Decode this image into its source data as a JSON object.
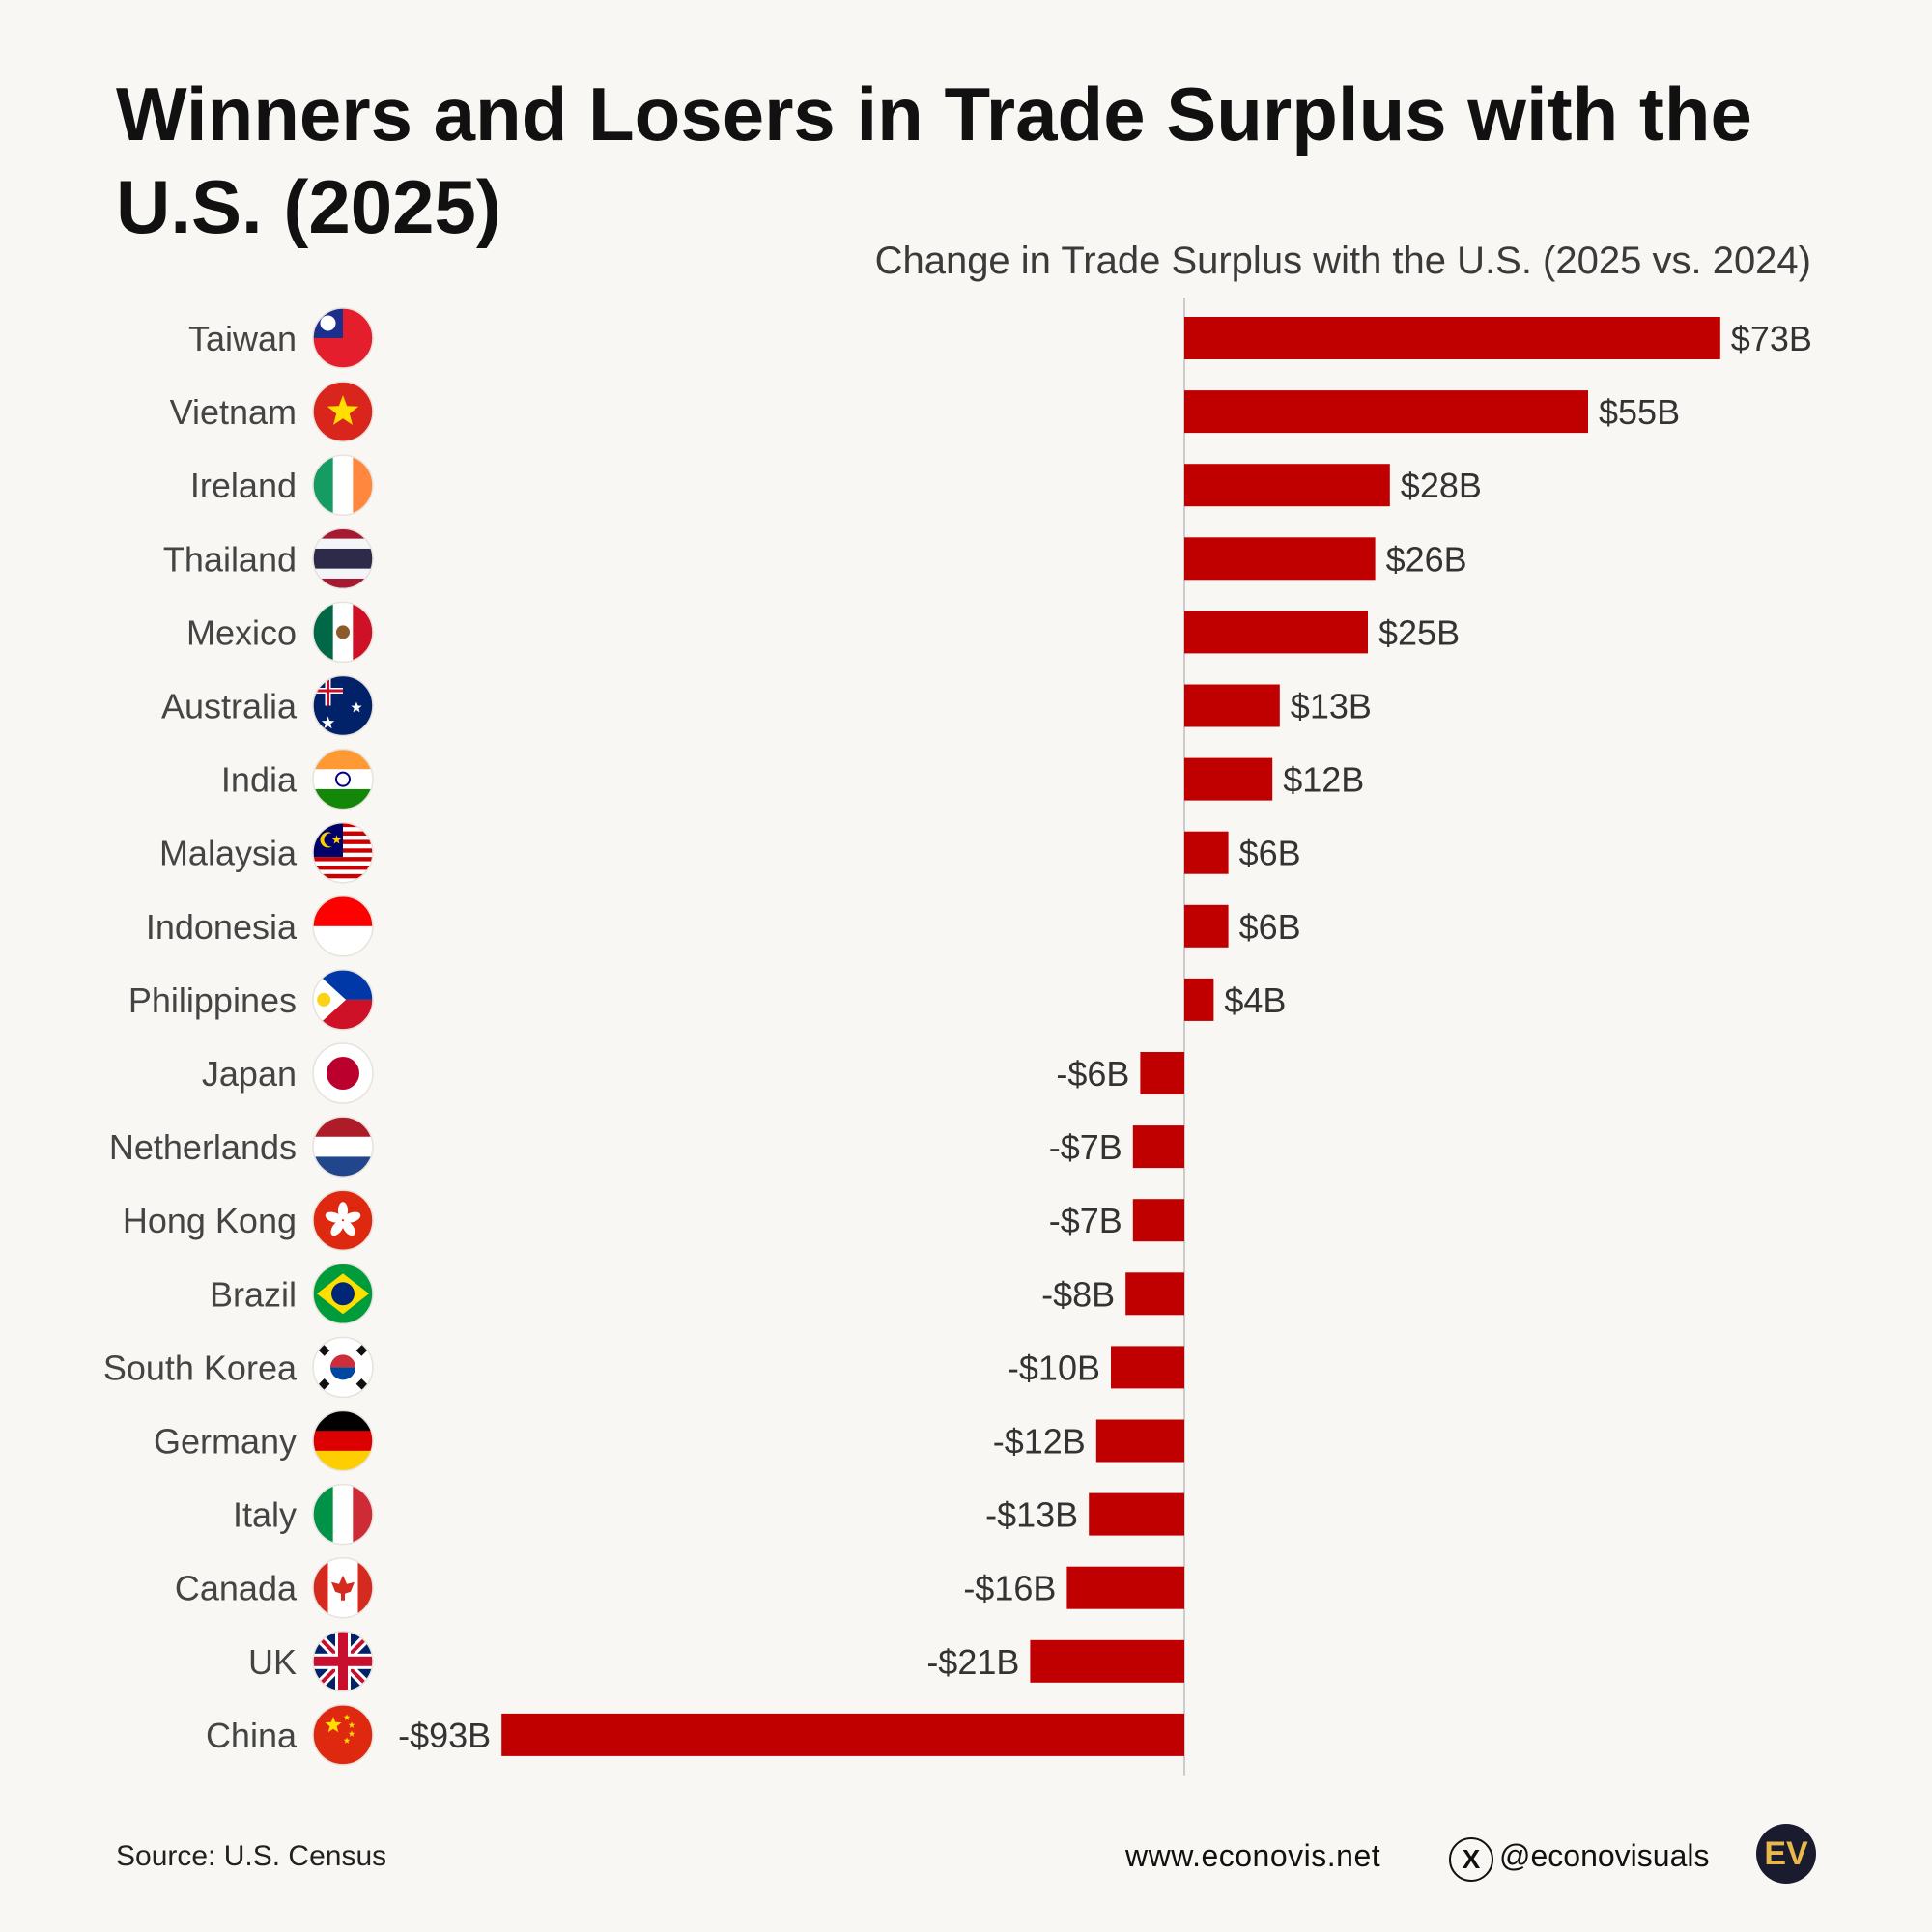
{
  "header": {
    "title": "Winners and Losers in Trade Surplus with the U.S. (2025)",
    "subtitle": "Change in Trade Surplus with the U.S. (2025 vs. 2024)"
  },
  "footer": {
    "source": "Source: U.S. Census",
    "website": "www.econovis.net",
    "x_icon": "X",
    "handle": "@econovisuals",
    "logo_text": "EV"
  },
  "colors": {
    "bar": "#c00000",
    "background": "#f9f7f3",
    "axis": "#cccccc"
  },
  "chart_data": {
    "type": "bar",
    "orientation": "horizontal",
    "title": "Winners and Losers in Trade Surplus with the U.S. (2025)",
    "subtitle": "Change in Trade Surplus with the U.S. (2025 vs. 2024)",
    "xlabel": "",
    "ylabel": "",
    "unit": "$B",
    "xlim": [
      -93,
      73
    ],
    "categories": [
      "Taiwan",
      "Vietnam",
      "Ireland",
      "Thailand",
      "Mexico",
      "Australia",
      "India",
      "Malaysia",
      "Indonesia",
      "Philippines",
      "Japan",
      "Netherlands",
      "Hong Kong",
      "Brazil",
      "South Korea",
      "Germany",
      "Italy",
      "Canada",
      "UK",
      "China"
    ],
    "values": [
      73,
      55,
      28,
      26,
      25,
      13,
      12,
      6,
      6,
      4,
      -6,
      -7,
      -7,
      -8,
      -10,
      -12,
      -13,
      -16,
      -21,
      -93
    ],
    "labels": [
      "$73B",
      "$55B",
      "$28B",
      "$26B",
      "$25B",
      "$13B",
      "$12B",
      "$6B",
      "$6B",
      "$4B",
      "-$6B",
      "-$7B",
      "-$7B",
      "-$8B",
      "-$10B",
      "-$12B",
      "-$13B",
      "-$16B",
      "-$21B",
      "-$93B"
    ],
    "flags": [
      "taiwan-flag-icon",
      "vietnam-flag-icon",
      "ireland-flag-icon",
      "thailand-flag-icon",
      "mexico-flag-icon",
      "australia-flag-icon",
      "india-flag-icon",
      "malaysia-flag-icon",
      "indonesia-flag-icon",
      "philippines-flag-icon",
      "japan-flag-icon",
      "netherlands-flag-icon",
      "hong-kong-flag-icon",
      "brazil-flag-icon",
      "south-korea-flag-icon",
      "germany-flag-icon",
      "italy-flag-icon",
      "canada-flag-icon",
      "uk-flag-icon",
      "china-flag-icon"
    ]
  }
}
